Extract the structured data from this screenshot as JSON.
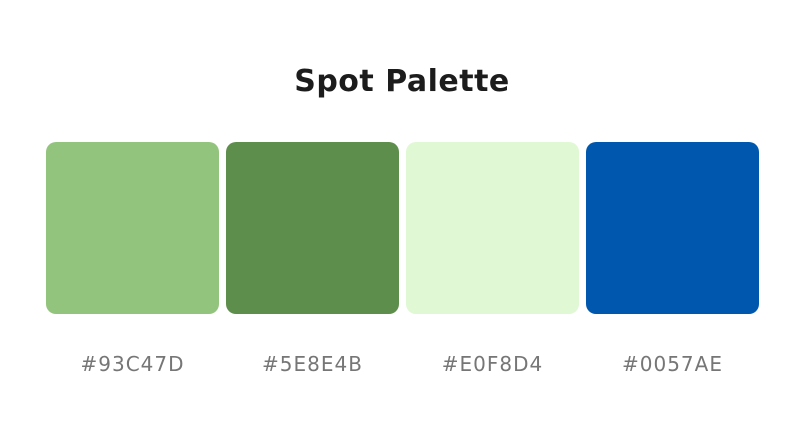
{
  "title": "Spot Palette",
  "colors": [
    {
      "hex": "#93C47D",
      "label": "#93C47D"
    },
    {
      "hex": "#5E8E4B",
      "label": "#5E8E4B"
    },
    {
      "hex": "#E0F8D4",
      "label": "#E0F8D4"
    },
    {
      "hex": "#0057AE",
      "label": "#0057AE"
    }
  ]
}
